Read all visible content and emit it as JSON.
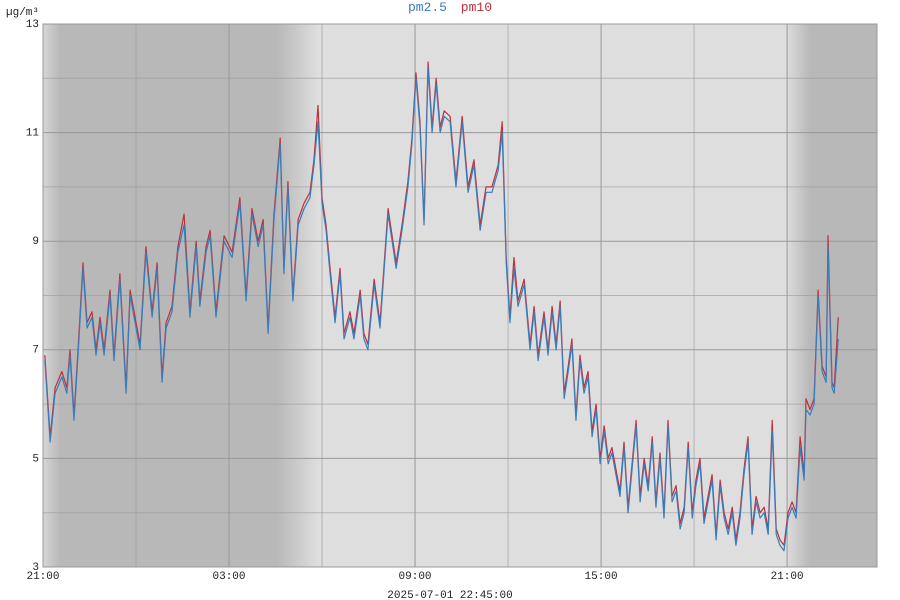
{
  "chart_data": {
    "type": "line",
    "y_label": "µg/m³",
    "x_label": "2025-07-01 22:45:00",
    "x": [
      0.06,
      0.23,
      0.39,
      0.61,
      0.77,
      0.87,
      1.0,
      1.13,
      1.29,
      1.42,
      1.58,
      1.71,
      1.84,
      1.97,
      2.16,
      2.29,
      2.48,
      2.68,
      2.81,
      3.13,
      3.32,
      3.52,
      3.68,
      3.84,
      3.97,
      4.16,
      4.35,
      4.55,
      4.74,
      4.94,
      5.06,
      5.26,
      5.39,
      5.58,
      5.84,
      6.1,
      6.35,
      6.55,
      6.74,
      6.94,
      7.1,
      7.26,
      7.45,
      7.65,
      7.77,
      7.9,
      8.06,
      8.23,
      8.42,
      8.61,
      8.74,
      8.87,
      9.0,
      9.13,
      9.26,
      9.42,
      9.58,
      9.71,
      9.9,
      10.03,
      10.23,
      10.35,
      10.48,
      10.68,
      10.87,
      11.13,
      11.39,
      11.58,
      11.77,
      11.9,
      12.03,
      12.16,
      12.29,
      12.42,
      12.55,
      12.68,
      12.81,
      12.94,
      13.13,
      13.32,
      13.52,
      13.71,
      13.9,
      14.1,
      14.29,
      14.48,
      14.68,
      14.81,
      14.94,
      15.06,
      15.19,
      15.32,
      15.52,
      15.71,
      15.84,
      15.97,
      16.16,
      16.29,
      16.42,
      16.55,
      16.68,
      16.81,
      16.94,
      17.06,
      17.19,
      17.32,
      17.45,
      17.58,
      17.71,
      17.84,
      17.97,
      18.1,
      18.23,
      18.35,
      18.48,
      18.61,
      18.74,
      18.87,
      19.0,
      19.13,
      19.26,
      19.39,
      19.52,
      19.65,
      19.77,
      19.9,
      20.03,
      20.16,
      20.29,
      20.42,
      20.55,
      20.68,
      20.81,
      20.94,
      21.06,
      21.19,
      21.32,
      21.45,
      21.58,
      21.71,
      21.84,
      21.97,
      22.1,
      22.23,
      22.35,
      22.48,
      22.61,
      22.74,
      22.87,
      23.0,
      23.13,
      23.26,
      23.39,
      23.52,
      23.65,
      23.77,
      23.9,
      24.03,
      24.16,
      24.29,
      24.42,
      24.55,
      24.61,
      24.74,
      24.87,
      25.0,
      25.13,
      25.26,
      25.32,
      25.45,
      25.52,
      25.65
    ],
    "series": [
      {
        "name": "pm10",
        "color": "#c0303a",
        "values": [
          6.9,
          5.4,
          6.3,
          6.6,
          6.3,
          7.0,
          5.8,
          7.0,
          8.6,
          7.5,
          7.7,
          7.0,
          7.6,
          7.0,
          8.1,
          6.9,
          8.4,
          6.3,
          8.1,
          7.1,
          8.9,
          7.7,
          8.6,
          6.5,
          7.5,
          7.8,
          8.9,
          9.5,
          7.7,
          9.0,
          7.9,
          8.9,
          9.2,
          7.7,
          9.1,
          8.8,
          9.8,
          8.0,
          9.6,
          9.0,
          9.4,
          7.4,
          9.5,
          10.9,
          8.5,
          10.1,
          8.0,
          9.4,
          9.7,
          9.9,
          10.5,
          11.5,
          9.8,
          9.3,
          8.5,
          7.6,
          8.5,
          7.3,
          7.7,
          7.3,
          8.1,
          7.3,
          7.1,
          8.3,
          7.5,
          9.6,
          8.6,
          9.3,
          10.1,
          10.9,
          12.1,
          11.2,
          9.4,
          12.3,
          11.1,
          12.0,
          11.1,
          11.4,
          11.3,
          10.1,
          11.3,
          10.0,
          10.5,
          9.3,
          10.0,
          10.0,
          10.4,
          11.2,
          8.7,
          7.6,
          8.7,
          7.9,
          8.3,
          7.1,
          7.8,
          6.9,
          7.7,
          7.0,
          7.8,
          7.1,
          7.9,
          6.2,
          6.7,
          7.2,
          5.8,
          6.9,
          6.3,
          6.6,
          5.5,
          6.0,
          5.0,
          5.6,
          5.0,
          5.2,
          4.8,
          4.4,
          5.3,
          4.1,
          4.9,
          5.7,
          4.3,
          5.0,
          4.5,
          5.4,
          4.2,
          5.1,
          4.0,
          5.7,
          4.3,
          4.5,
          3.8,
          4.1,
          5.3,
          4.0,
          4.6,
          5.0,
          3.9,
          4.3,
          4.7,
          3.6,
          4.6,
          4.0,
          3.7,
          4.1,
          3.5,
          4.0,
          4.8,
          5.4,
          3.7,
          4.3,
          4.0,
          4.1,
          3.7,
          5.7,
          3.7,
          3.5,
          3.4,
          4.0,
          4.2,
          4.0,
          5.4,
          4.7,
          6.1,
          5.9,
          6.1,
          8.1,
          6.7,
          6.5,
          9.1,
          6.4,
          6.3,
          7.6
        ]
      },
      {
        "name": "pm2.5",
        "color": "#3a7db8",
        "values": [
          6.8,
          5.3,
          6.2,
          6.5,
          6.2,
          6.9,
          5.7,
          6.9,
          8.5,
          7.4,
          7.6,
          6.9,
          7.5,
          6.9,
          8.0,
          6.8,
          8.3,
          6.2,
          8.0,
          7.0,
          8.8,
          7.6,
          8.5,
          6.4,
          7.4,
          7.7,
          8.8,
          9.3,
          7.6,
          8.9,
          7.8,
          8.8,
          9.1,
          7.6,
          9.0,
          8.7,
          9.7,
          7.9,
          9.5,
          8.9,
          9.3,
          7.3,
          9.4,
          10.8,
          8.4,
          10.0,
          7.9,
          9.3,
          9.6,
          9.8,
          10.4,
          11.2,
          9.7,
          9.2,
          8.4,
          7.5,
          8.4,
          7.2,
          7.6,
          7.2,
          8.0,
          7.2,
          7.0,
          8.2,
          7.4,
          9.5,
          8.5,
          9.2,
          10.0,
          10.8,
          12.0,
          11.1,
          9.3,
          12.2,
          11.0,
          11.9,
          11.0,
          11.3,
          11.2,
          10.0,
          11.2,
          9.9,
          10.4,
          9.2,
          9.9,
          9.9,
          10.3,
          11.0,
          8.6,
          7.5,
          8.5,
          7.8,
          8.2,
          7.0,
          7.7,
          6.8,
          7.6,
          6.9,
          7.7,
          7.0,
          7.8,
          6.1,
          6.6,
          7.1,
          5.7,
          6.8,
          6.2,
          6.5,
          5.4,
          5.9,
          4.9,
          5.5,
          4.9,
          5.1,
          4.7,
          4.3,
          5.2,
          4.0,
          4.8,
          5.6,
          4.2,
          4.9,
          4.4,
          5.3,
          4.1,
          5.0,
          3.9,
          5.6,
          4.2,
          4.4,
          3.7,
          4.0,
          5.2,
          3.9,
          4.5,
          4.9,
          3.8,
          4.2,
          4.6,
          3.5,
          4.5,
          3.9,
          3.6,
          4.0,
          3.4,
          3.9,
          4.7,
          5.3,
          3.6,
          4.2,
          3.9,
          4.0,
          3.6,
          5.5,
          3.6,
          3.4,
          3.3,
          3.9,
          4.1,
          3.9,
          5.2,
          4.6,
          5.9,
          5.8,
          6.0,
          8.0,
          6.6,
          6.4,
          8.9,
          6.3,
          6.2,
          7.2
        ]
      }
    ],
    "xlim": [
      0,
      26.9
    ],
    "xticks": [
      {
        "value": 0,
        "label": "21:00"
      },
      {
        "value": 6,
        "label": "03:00"
      },
      {
        "value": 12,
        "label": "09:00"
      },
      {
        "value": 18,
        "label": "15:00"
      },
      {
        "value": 24,
        "label": "21:00"
      }
    ],
    "xminor": [
      3,
      9,
      15,
      21
    ],
    "ylim": [
      3,
      13
    ],
    "yticks": [
      3,
      5,
      7,
      9,
      11,
      13
    ],
    "yminor": [
      4,
      6,
      8,
      10,
      12
    ],
    "grid": true
  }
}
